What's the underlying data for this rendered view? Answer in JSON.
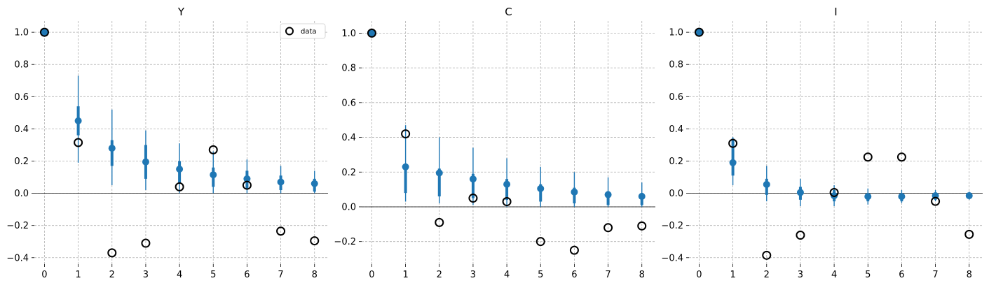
{
  "chart_data": [
    {
      "type": "scatter",
      "title": "Y",
      "legend": {
        "label": "data",
        "placement": "top-right"
      },
      "x": [
        0,
        1,
        2,
        3,
        4,
        5,
        6,
        7,
        8
      ],
      "xticks": [
        0,
        1,
        2,
        3,
        4,
        5,
        6,
        7,
        8
      ],
      "xlim": [
        -0.3,
        8.4
      ],
      "yticks": [
        -0.4,
        -0.2,
        0.0,
        0.2,
        0.4,
        0.6,
        0.8,
        1.0
      ],
      "ytick_labels": [
        "−0.4",
        "−0.2",
        "0.0",
        "0.2",
        "0.4",
        "0.6",
        "0.8",
        "1.0"
      ],
      "ylim": [
        -0.44,
        1.07
      ],
      "estimate": [
        1.0,
        0.45,
        0.28,
        0.195,
        0.15,
        0.115,
        0.09,
        0.07,
        0.06
      ],
      "inner_band": [
        [
          1.0,
          1.0
        ],
        [
          0.36,
          0.54
        ],
        [
          0.17,
          0.33
        ],
        [
          0.09,
          0.3
        ],
        [
          0.06,
          0.2
        ],
        [
          0.04,
          0.16
        ],
        [
          0.03,
          0.14
        ],
        [
          0.02,
          0.11
        ],
        [
          0.01,
          0.09
        ]
      ],
      "outer_band": [
        [
          1.0,
          1.0
        ],
        [
          0.19,
          0.73
        ],
        [
          0.05,
          0.52
        ],
        [
          0.02,
          0.39
        ],
        [
          0.0,
          0.31
        ],
        [
          0.0,
          0.26
        ],
        [
          0.0,
          0.21
        ],
        [
          0.0,
          0.17
        ],
        [
          0.0,
          0.14
        ]
      ],
      "data": [
        1.0,
        0.315,
        -0.37,
        -0.31,
        0.04,
        0.27,
        0.05,
        -0.235,
        -0.295
      ],
      "grid": true,
      "colors": {
        "estimate": "#1f77b4",
        "data_edge": "#000000"
      }
    },
    {
      "type": "scatter",
      "title": "C",
      "x": [
        0,
        1,
        2,
        3,
        4,
        5,
        6,
        7,
        8
      ],
      "xticks": [
        0,
        1,
        2,
        3,
        4,
        5,
        6,
        7,
        8
      ],
      "xlim": [
        -0.3,
        8.4
      ],
      "yticks": [
        -0.2,
        0.0,
        0.2,
        0.4,
        0.6,
        0.8,
        1.0
      ],
      "ytick_labels": [
        "−0.2",
        "0.0",
        "0.2",
        "0.4",
        "0.6",
        "0.8",
        "1.0"
      ],
      "ylim": [
        -0.33,
        1.07
      ],
      "estimate": [
        1.0,
        0.23,
        0.195,
        0.16,
        0.13,
        0.105,
        0.085,
        0.07,
        0.06
      ],
      "inner_band": [
        [
          1.0,
          1.0
        ],
        [
          0.08,
          0.25
        ],
        [
          0.06,
          0.22
        ],
        [
          0.05,
          0.19
        ],
        [
          0.04,
          0.16
        ],
        [
          0.03,
          0.13
        ],
        [
          0.02,
          0.11
        ],
        [
          0.01,
          0.09
        ],
        [
          0.01,
          0.08
        ]
      ],
      "outer_band": [
        [
          1.0,
          1.0
        ],
        [
          0.03,
          0.47
        ],
        [
          0.02,
          0.4
        ],
        [
          0.01,
          0.34
        ],
        [
          0.0,
          0.28
        ],
        [
          0.0,
          0.23
        ],
        [
          0.0,
          0.2
        ],
        [
          0.0,
          0.17
        ],
        [
          0.0,
          0.14
        ]
      ],
      "data": [
        1.0,
        0.42,
        -0.09,
        0.05,
        0.03,
        -0.2,
        -0.25,
        -0.12,
        -0.11
      ],
      "grid": true,
      "colors": {
        "estimate": "#1f77b4",
        "data_edge": "#000000"
      }
    },
    {
      "type": "scatter",
      "title": "I",
      "x": [
        0,
        1,
        2,
        3,
        4,
        5,
        6,
        7,
        8
      ],
      "xticks": [
        0,
        1,
        2,
        3,
        4,
        5,
        6,
        7,
        8
      ],
      "xlim": [
        -0.3,
        8.4
      ],
      "yticks": [
        -0.4,
        -0.2,
        0.0,
        0.2,
        0.4,
        0.6,
        0.8,
        1.0
      ],
      "ytick_labels": [
        "−0.4",
        "−0.2",
        "0.0",
        "0.2",
        "0.4",
        "0.6",
        "0.8",
        "1.0"
      ],
      "ylim": [
        -0.44,
        1.07
      ],
      "estimate": [
        1.0,
        0.19,
        0.055,
        0.005,
        -0.015,
        -0.02,
        -0.02,
        -0.015,
        -0.015
      ],
      "inner_band": [
        [
          1.0,
          1.0
        ],
        [
          0.11,
          0.34
        ],
        [
          -0.01,
          0.09
        ],
        [
          -0.04,
          0.04
        ],
        [
          -0.05,
          0.02
        ],
        [
          -0.05,
          0.0
        ],
        [
          -0.05,
          0.0
        ],
        [
          -0.04,
          0.0
        ],
        [
          -0.03,
          0.0
        ]
      ],
      "outer_band": [
        [
          1.0,
          1.0
        ],
        [
          0.05,
          0.35
        ],
        [
          -0.05,
          0.17
        ],
        [
          -0.08,
          0.09
        ],
        [
          -0.08,
          0.05
        ],
        [
          -0.07,
          0.03
        ],
        [
          -0.06,
          0.02
        ],
        [
          -0.05,
          0.02
        ],
        [
          -0.04,
          0.01
        ]
      ],
      "data": [
        1.0,
        0.31,
        -0.385,
        -0.26,
        0.005,
        0.225,
        0.225,
        -0.05,
        -0.255
      ],
      "grid": true,
      "colors": {
        "estimate": "#1f77b4",
        "data_edge": "#000000"
      }
    }
  ]
}
